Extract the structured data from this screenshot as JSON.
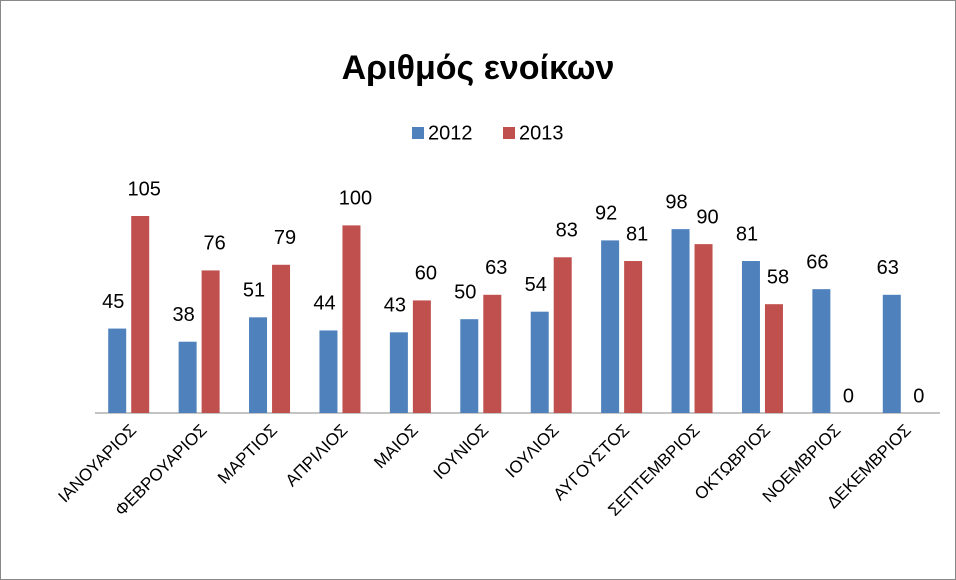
{
  "chart_data": {
    "type": "bar",
    "title": "Αριθμός ενοίκων",
    "categories": [
      "ΙΑΝΟΥΑΡΙΟΣ",
      "ΦΕΒΡΟΥΑΡΙΟΣ",
      "ΜΑΡΤΙΟΣ",
      "ΑΠΡΙΛΙΟΣ",
      "ΜΑΙΟΣ",
      "ΙΟΥΝΙΟΣ",
      "ΙΟΥΛΙΟΣ",
      "ΑΥΓΟΥΣΤΟΣ",
      "ΣΕΠΤΕΜΒΡΙΟΣ",
      "ΟΚΤΩΒΡΙΟΣ",
      "ΝΟΕΜΒΡΙΟΣ",
      "ΔΕΚΕΜΒΡΙΟΣ"
    ],
    "series": [
      {
        "name": "2012",
        "color": "#4f81bd",
        "values": [
          45,
          38,
          51,
          44,
          43,
          50,
          54,
          92,
          98,
          81,
          66,
          63
        ]
      },
      {
        "name": "2013",
        "color": "#c0504d",
        "values": [
          105,
          76,
          79,
          100,
          60,
          63,
          83,
          81,
          90,
          58,
          0,
          0
        ]
      }
    ],
    "legend": "top"
  }
}
